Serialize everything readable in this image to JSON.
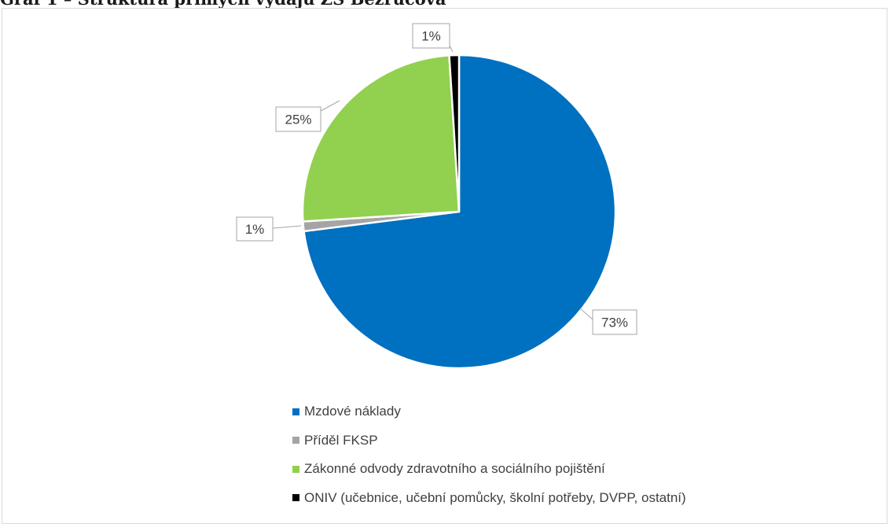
{
  "document": {
    "title": "Graf 1 – Struktura přímých výdajů ZŠ Bezručova"
  },
  "chart_data": {
    "type": "pie",
    "title": "",
    "slices": [
      {
        "label": "Mzdové náklady",
        "value": 73,
        "display": "73%",
        "color": "#0070c0"
      },
      {
        "label": "Příděl FKSP",
        "value": 1,
        "display": "1%",
        "color": "#a5a5a5"
      },
      {
        "label": "Zákonné odvody zdravotního a sociálního pojištění",
        "value": 25,
        "display": "25%",
        "color": "#92d050"
      },
      {
        "label": "ONIV (učebnice, učební pomůcky, školní potřeby, DVPP, ostatní)",
        "value": 1,
        "display": "1%",
        "color": "#000000"
      }
    ],
    "legend_position": "bottom",
    "data_labels": "callout boxes with percentages"
  }
}
